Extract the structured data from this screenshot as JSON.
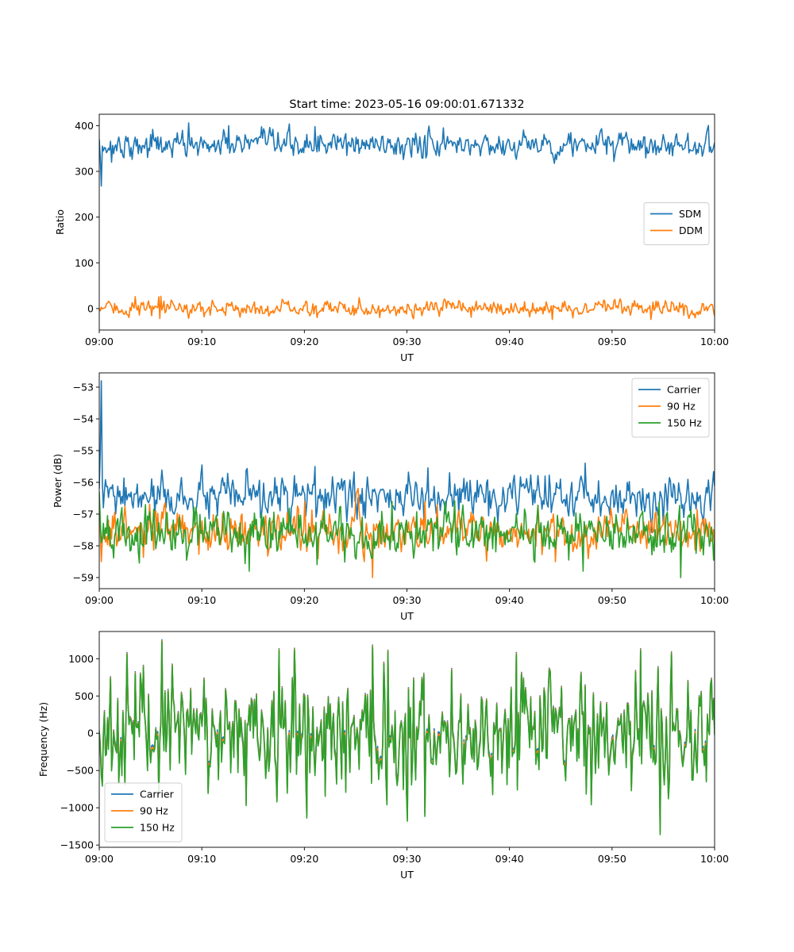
{
  "figure": {
    "title": "Start time: 2023-05-16 09:00:01.671332"
  },
  "chart_data": [
    {
      "type": "line",
      "xlabel": "UT",
      "ylabel": "Ratio",
      "xlim": [
        "09:00",
        "10:00"
      ],
      "ylim": [
        -47,
        425
      ],
      "yticks": [
        0,
        100,
        200,
        300,
        400
      ],
      "xticks": [
        "09:00",
        "09:10",
        "09:20",
        "09:30",
        "09:40",
        "09:50",
        "10:00"
      ],
      "legend": "center-right",
      "series": [
        {
          "name": "SDM",
          "color": "#1f77b4",
          "mean": 358,
          "noise": 13,
          "initial": [
            370,
            330,
            268,
            355,
            345
          ],
          "peaks": [
            {
              "t": "09:08:45",
              "v": 406
            },
            {
              "t": "09:12:40",
              "v": 400
            },
            {
              "t": "09:21:05",
              "v": 398
            },
            {
              "t": "09:05:10",
              "v": 392
            }
          ],
          "dips": [
            {
              "t": "09:00:15",
              "v": 268
            },
            {
              "t": "09:01:10",
              "v": 320
            },
            {
              "t": "09:29:40",
              "v": 326
            },
            {
              "t": "09:50:10",
              "v": 322
            }
          ]
        },
        {
          "name": "DDM",
          "color": "#ff7f0e",
          "mean": 0,
          "noise": 8,
          "initial": [
            0,
            -5,
            3
          ],
          "peaks": [
            {
              "t": "09:03:30",
              "v": 26
            },
            {
              "t": "09:06:00",
              "v": 27
            }
          ],
          "dips": [
            {
              "t": "09:05:55",
              "v": -22
            },
            {
              "t": "09:44:10",
              "v": -24
            },
            {
              "t": "09:53:50",
              "v": -24
            }
          ]
        }
      ]
    },
    {
      "type": "line",
      "xlabel": "UT",
      "ylabel": "Power (dB)",
      "xlim": [
        "09:00",
        "10:00"
      ],
      "ylim": [
        -59.35,
        -52.55
      ],
      "yticks": [
        -59,
        -58,
        -57,
        -56,
        -55,
        -54,
        -53
      ],
      "xticks": [
        "09:00",
        "09:10",
        "09:20",
        "09:30",
        "09:40",
        "09:50",
        "10:00"
      ],
      "legend": "top-right",
      "series": [
        {
          "name": "Carrier",
          "color": "#1f77b4",
          "mean": -56.5,
          "noise": 0.3,
          "initial": [
            -56.2,
            -55.0,
            -52.8,
            -56.0,
            -56.8
          ],
          "peaks": [
            {
              "t": "09:21:00",
              "v": -55.5
            },
            {
              "t": "09:17:10",
              "v": -55.85
            },
            {
              "t": "09:43:30",
              "v": -55.8
            }
          ],
          "dips": [
            {
              "t": "09:55:00",
              "v": -57.3
            }
          ]
        },
        {
          "name": "90 Hz",
          "color": "#ff7f0e",
          "mean": -57.55,
          "noise": 0.3,
          "initial": [
            -56.6,
            -57.5,
            -58.5,
            -57.8
          ],
          "peaks": [
            {
              "t": "09:20:00",
              "v": -56.6
            },
            {
              "t": "09:33:00",
              "v": -56.7
            }
          ],
          "dips": [
            {
              "t": "09:26:40",
              "v": -59.0
            },
            {
              "t": "09:44:30",
              "v": -58.5
            }
          ]
        },
        {
          "name": "150 Hz",
          "color": "#2ca02c",
          "mean": -57.6,
          "noise": 0.35,
          "initial": [
            -56.3,
            -57.2,
            -57.9
          ],
          "peaks": [
            {
              "t": "09:28:30",
              "v": -56.6
            }
          ],
          "dips": [
            {
              "t": "09:56:40",
              "v": -59.0
            },
            {
              "t": "09:14:40",
              "v": -58.8
            },
            {
              "t": "09:47:10",
              "v": -58.8
            }
          ]
        }
      ]
    },
    {
      "type": "line",
      "xlabel": "UT",
      "ylabel": "Frequency (Hz)",
      "xlim": [
        "09:00",
        "10:00"
      ],
      "ylim": [
        -1530,
        1365
      ],
      "yticks": [
        -1500,
        -1000,
        -500,
        0,
        500,
        1000
      ],
      "xticks": [
        "09:00",
        "09:10",
        "09:20",
        "09:30",
        "09:40",
        "09:50",
        "10:00"
      ],
      "legend": "bottom-left",
      "series": [
        {
          "name": "Carrier",
          "color": "#1f77b4",
          "offset": -60
        },
        {
          "name": "90 Hz",
          "color": "#ff7f0e",
          "offset": -30
        },
        {
          "name": "150 Hz",
          "color": "#2ca02c",
          "offset": 0,
          "base_noise": 380,
          "peaks": [
            {
              "t": "09:06:05",
              "v": 1230
            },
            {
              "t": "09:02:40",
              "v": 1060
            },
            {
              "t": "09:17:30",
              "v": 1110
            },
            {
              "t": "09:26:40",
              "v": 1160
            },
            {
              "t": "09:28:10",
              "v": 1090
            },
            {
              "t": "09:40:40",
              "v": 1060
            },
            {
              "t": "09:52:50",
              "v": 1110
            },
            {
              "t": "09:55:50",
              "v": 1070
            }
          ],
          "dips": [
            {
              "t": "09:54:40",
              "v": -1360
            },
            {
              "t": "09:30:00",
              "v": -1180
            },
            {
              "t": "09:14:20",
              "v": -970
            },
            {
              "t": "09:17:20",
              "v": -920
            },
            {
              "t": "09:28:00",
              "v": -960
            },
            {
              "t": "09:48:00",
              "v": -960
            },
            {
              "t": "09:02:30",
              "v": -690
            }
          ]
        }
      ]
    }
  ]
}
